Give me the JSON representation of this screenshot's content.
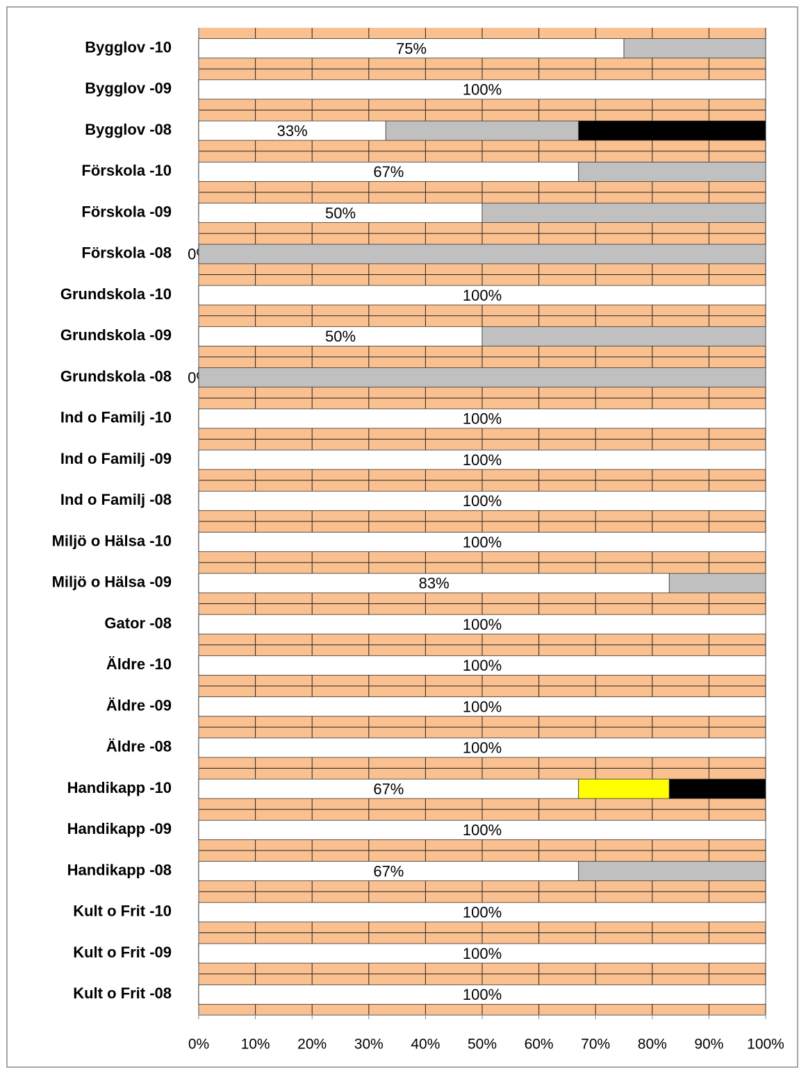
{
  "chart_data": {
    "type": "stacked_bar_horizontal",
    "categories": [
      "Bygglov -10",
      "Bygglov -09",
      "Bygglov -08",
      "Förskola -10",
      "Förskola -09",
      "Förskola -08",
      "Grundskola -10",
      "Grundskola -09",
      "Grundskola -08",
      "Ind o Familj -10",
      "Ind o Familj -09",
      "Ind o Familj -08",
      "Miljö o Hälsa -10",
      "Miljö o Hälsa -09",
      "Gator -08",
      "Äldre -10",
      "Äldre -09",
      "Äldre -08",
      "Handikapp -10",
      "Handikapp -09",
      "Handikapp -08",
      "Kult o Frit -10",
      "Kult o Frit -09",
      "Kult o Frit -08"
    ],
    "series": [
      {
        "color": "#ffffff",
        "values": [
          75,
          100,
          33,
          67,
          50,
          0,
          100,
          50,
          0,
          100,
          100,
          100,
          100,
          83,
          100,
          100,
          100,
          100,
          67,
          100,
          67,
          100,
          100,
          100
        ],
        "value_labels": [
          "75%",
          "100%",
          "33%",
          "67%",
          "50%",
          "0%",
          "100%",
          "50%",
          "0%",
          "100%",
          "100%",
          "100%",
          "100%",
          "83%",
          "100%",
          "100%",
          "100%",
          "100%",
          "67%",
          "100%",
          "67%",
          "100%",
          "100%",
          "100%"
        ]
      },
      {
        "color": "#c0c0c0",
        "values": [
          25,
          0,
          34,
          33,
          50,
          100,
          0,
          50,
          100,
          0,
          0,
          0,
          0,
          17,
          0,
          0,
          0,
          0,
          0,
          0,
          33,
          0,
          0,
          0
        ]
      },
      {
        "color": "#ffff00",
        "values": [
          0,
          0,
          0,
          0,
          0,
          0,
          0,
          0,
          0,
          0,
          0,
          0,
          0,
          0,
          0,
          0,
          0,
          0,
          16,
          0,
          0,
          0,
          0,
          0
        ]
      },
      {
        "color": "#000000",
        "values": [
          0,
          0,
          33,
          0,
          0,
          0,
          0,
          0,
          0,
          0,
          0,
          0,
          0,
          0,
          0,
          0,
          0,
          0,
          17,
          0,
          0,
          0,
          0,
          0
        ]
      }
    ],
    "xlim": [
      0,
      100
    ],
    "xticks": [
      {
        "value": 0,
        "label": "0%"
      },
      {
        "value": 10,
        "label": "10%"
      },
      {
        "value": 20,
        "label": "20%"
      },
      {
        "value": 30,
        "label": "30%"
      },
      {
        "value": 40,
        "label": "40%"
      },
      {
        "value": 50,
        "label": "50%"
      },
      {
        "value": 60,
        "label": "60%"
      },
      {
        "value": 70,
        "label": "70%"
      },
      {
        "value": 80,
        "label": "80%"
      },
      {
        "value": 90,
        "label": "90%"
      },
      {
        "value": 100,
        "label": "100%"
      }
    ],
    "grid": true,
    "plot_background": "#fac090"
  }
}
